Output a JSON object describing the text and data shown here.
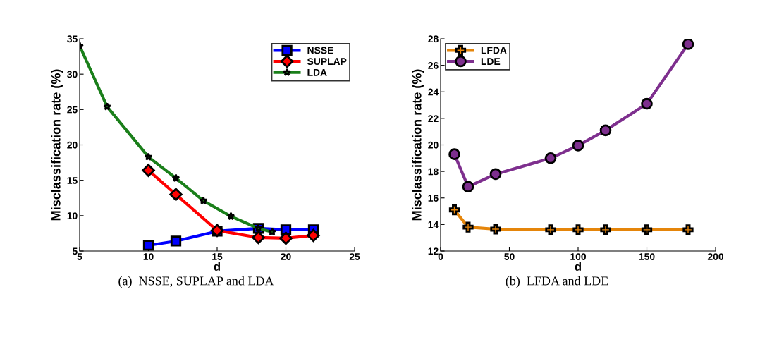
{
  "chart_data": [
    {
      "type": "line",
      "xlabel": "d",
      "ylabel": "Misclassification rate (%)",
      "xlim": [
        5,
        25
      ],
      "xticks": [
        5,
        10,
        15,
        20,
        25
      ],
      "ylim": [
        5,
        35
      ],
      "yticks": [
        5,
        10,
        15,
        20,
        25,
        30,
        35
      ],
      "grid": false,
      "legend": "top right",
      "annotations": [
        "(a)  NSSE, SUPLAP and LDA"
      ],
      "series": [
        {
          "name": "NSSE",
          "color": "#0000ff",
          "marker": "square",
          "x": [
            10,
            12,
            15,
            18,
            20,
            22
          ],
          "values": [
            5.8,
            6.4,
            7.8,
            8.2,
            8.0,
            8.0
          ]
        },
        {
          "name": "SUPLAP",
          "color": "#ff0000",
          "marker": "diamond",
          "x": [
            10,
            12,
            15,
            18,
            20,
            22
          ],
          "values": [
            16.4,
            13.0,
            7.9,
            6.9,
            6.8,
            7.2
          ]
        },
        {
          "name": "LDA",
          "color": "#1a7f1a",
          "marker": "star",
          "x": [
            5,
            7,
            10,
            12,
            14,
            16,
            18,
            19
          ],
          "values": [
            34,
            25.4,
            18.3,
            15.3,
            12.1,
            9.9,
            8.2,
            7.7
          ]
        }
      ]
    },
    {
      "type": "line",
      "xlabel": "d",
      "ylabel": "Misclassification rate (%)",
      "xlim": [
        0,
        200
      ],
      "xticks": [
        0,
        50,
        100,
        150,
        200
      ],
      "ylim": [
        12,
        28
      ],
      "yticks": [
        12,
        14,
        16,
        18,
        20,
        22,
        24,
        26,
        28
      ],
      "grid": false,
      "legend": "top left",
      "annotations": [
        "(b)  LFDA and LDE"
      ],
      "series": [
        {
          "name": "LFDA",
          "color": "#e5850a",
          "marker": "cross",
          "x": [
            10,
            20,
            40,
            80,
            100,
            120,
            150,
            180
          ],
          "values": [
            15.1,
            13.8,
            13.65,
            13.6,
            13.6,
            13.6,
            13.6,
            13.6
          ]
        },
        {
          "name": "LDE",
          "color": "#7e2f8e",
          "marker": "circle",
          "x": [
            10,
            20,
            40,
            80,
            100,
            120,
            150,
            180
          ],
          "values": [
            19.3,
            16.85,
            17.8,
            19.0,
            19.95,
            21.1,
            23.1,
            27.6
          ]
        }
      ]
    }
  ]
}
